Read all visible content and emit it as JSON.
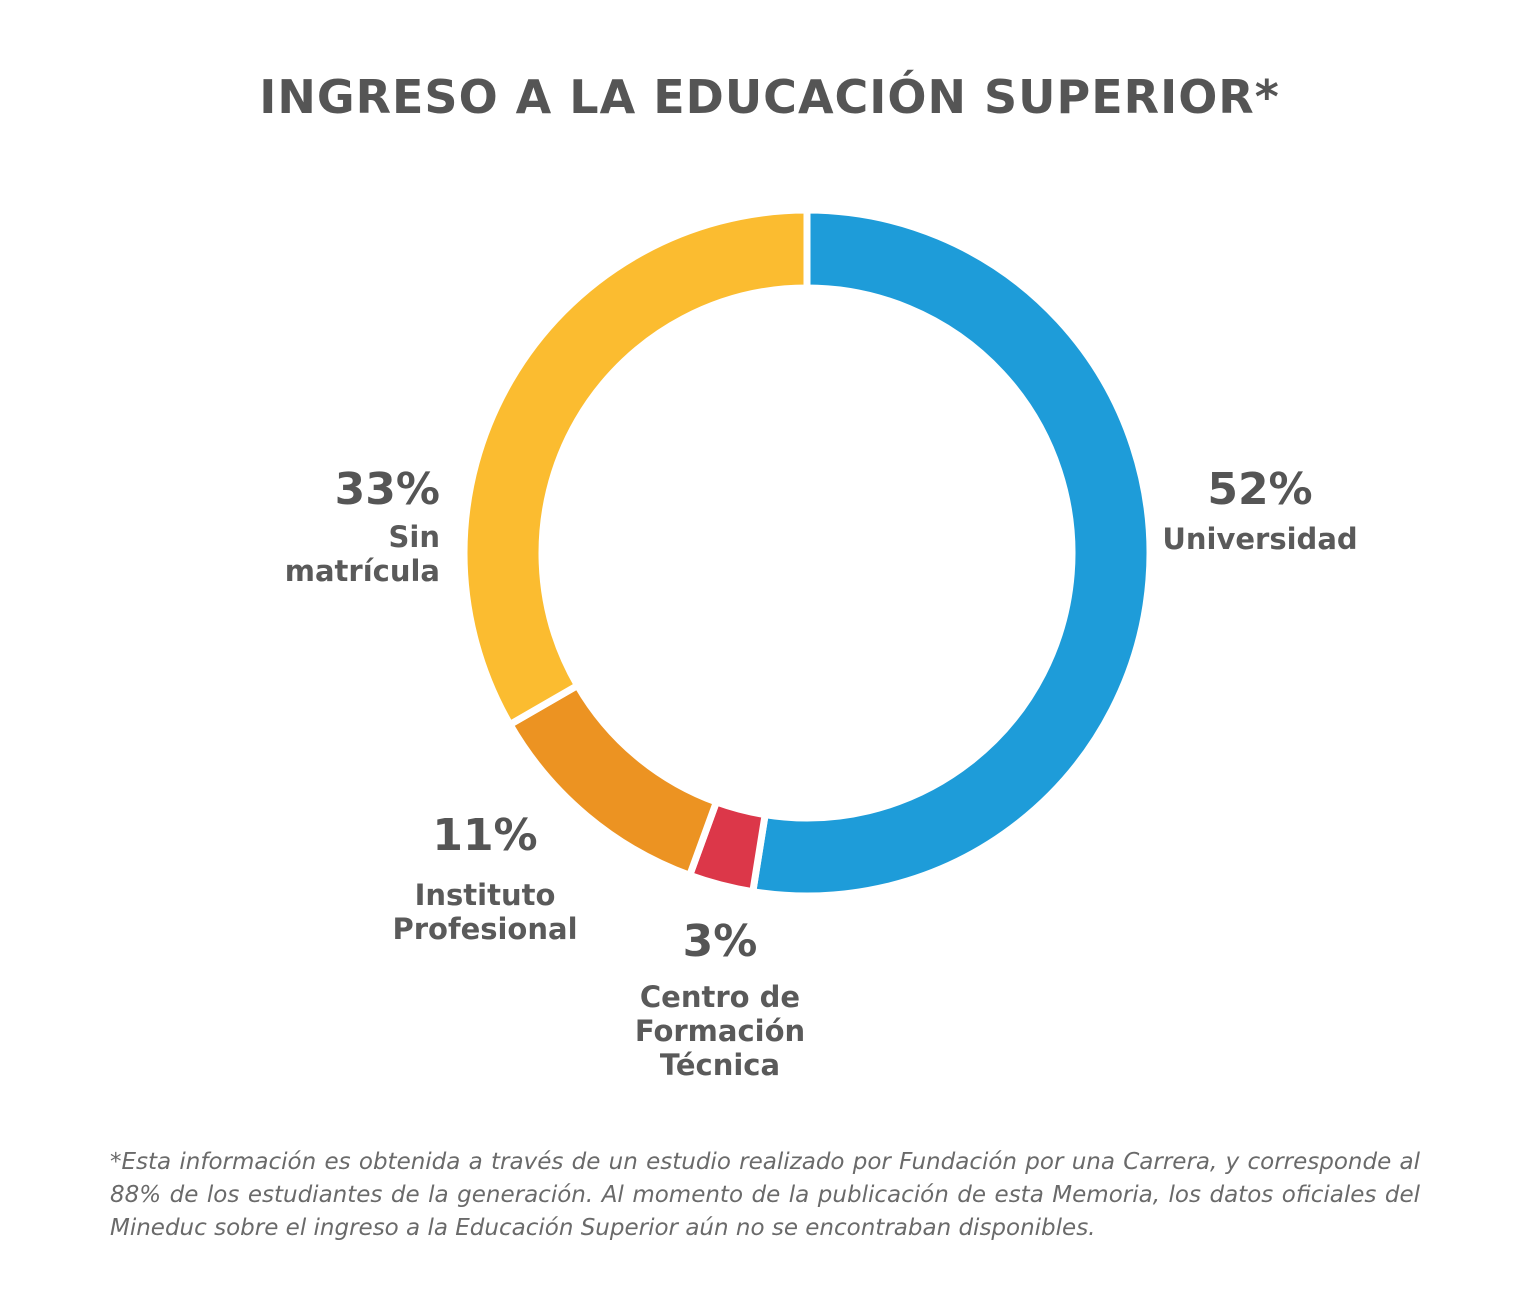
{
  "title": "INGRESO A LA EDUCACIÓN SUPERIOR*",
  "chart_data": {
    "type": "pie",
    "donut": true,
    "categories": [
      "Universidad",
      "Centro de Formación Técnica",
      "Instituto Profesional",
      "Sin matrícula"
    ],
    "values": [
      52,
      3,
      11,
      33
    ],
    "value_labels": [
      "52%",
      "3%",
      "11%",
      "33%"
    ],
    "category_lines": [
      [
        "Universidad"
      ],
      [
        "Centro de",
        "Formación",
        "Técnica"
      ],
      [
        "Instituto",
        "Profesional"
      ],
      [
        "Sin",
        "matrícula"
      ]
    ],
    "colors": [
      "#1E9CD9",
      "#DC3749",
      "#EC9322",
      "#FBBC30"
    ],
    "direction": "clockwise",
    "start": "top"
  },
  "footnote": "*Esta información es obtenida a través de un estudio realizado por Fundación por una Carrera, y corresponde al 88% de los estudiantes de la generación. Al momento de la publicación de esta Memoria, los datos oficiales del Mineduc sobre el ingreso a la Educación Superior aún no se encontraban disponibles."
}
